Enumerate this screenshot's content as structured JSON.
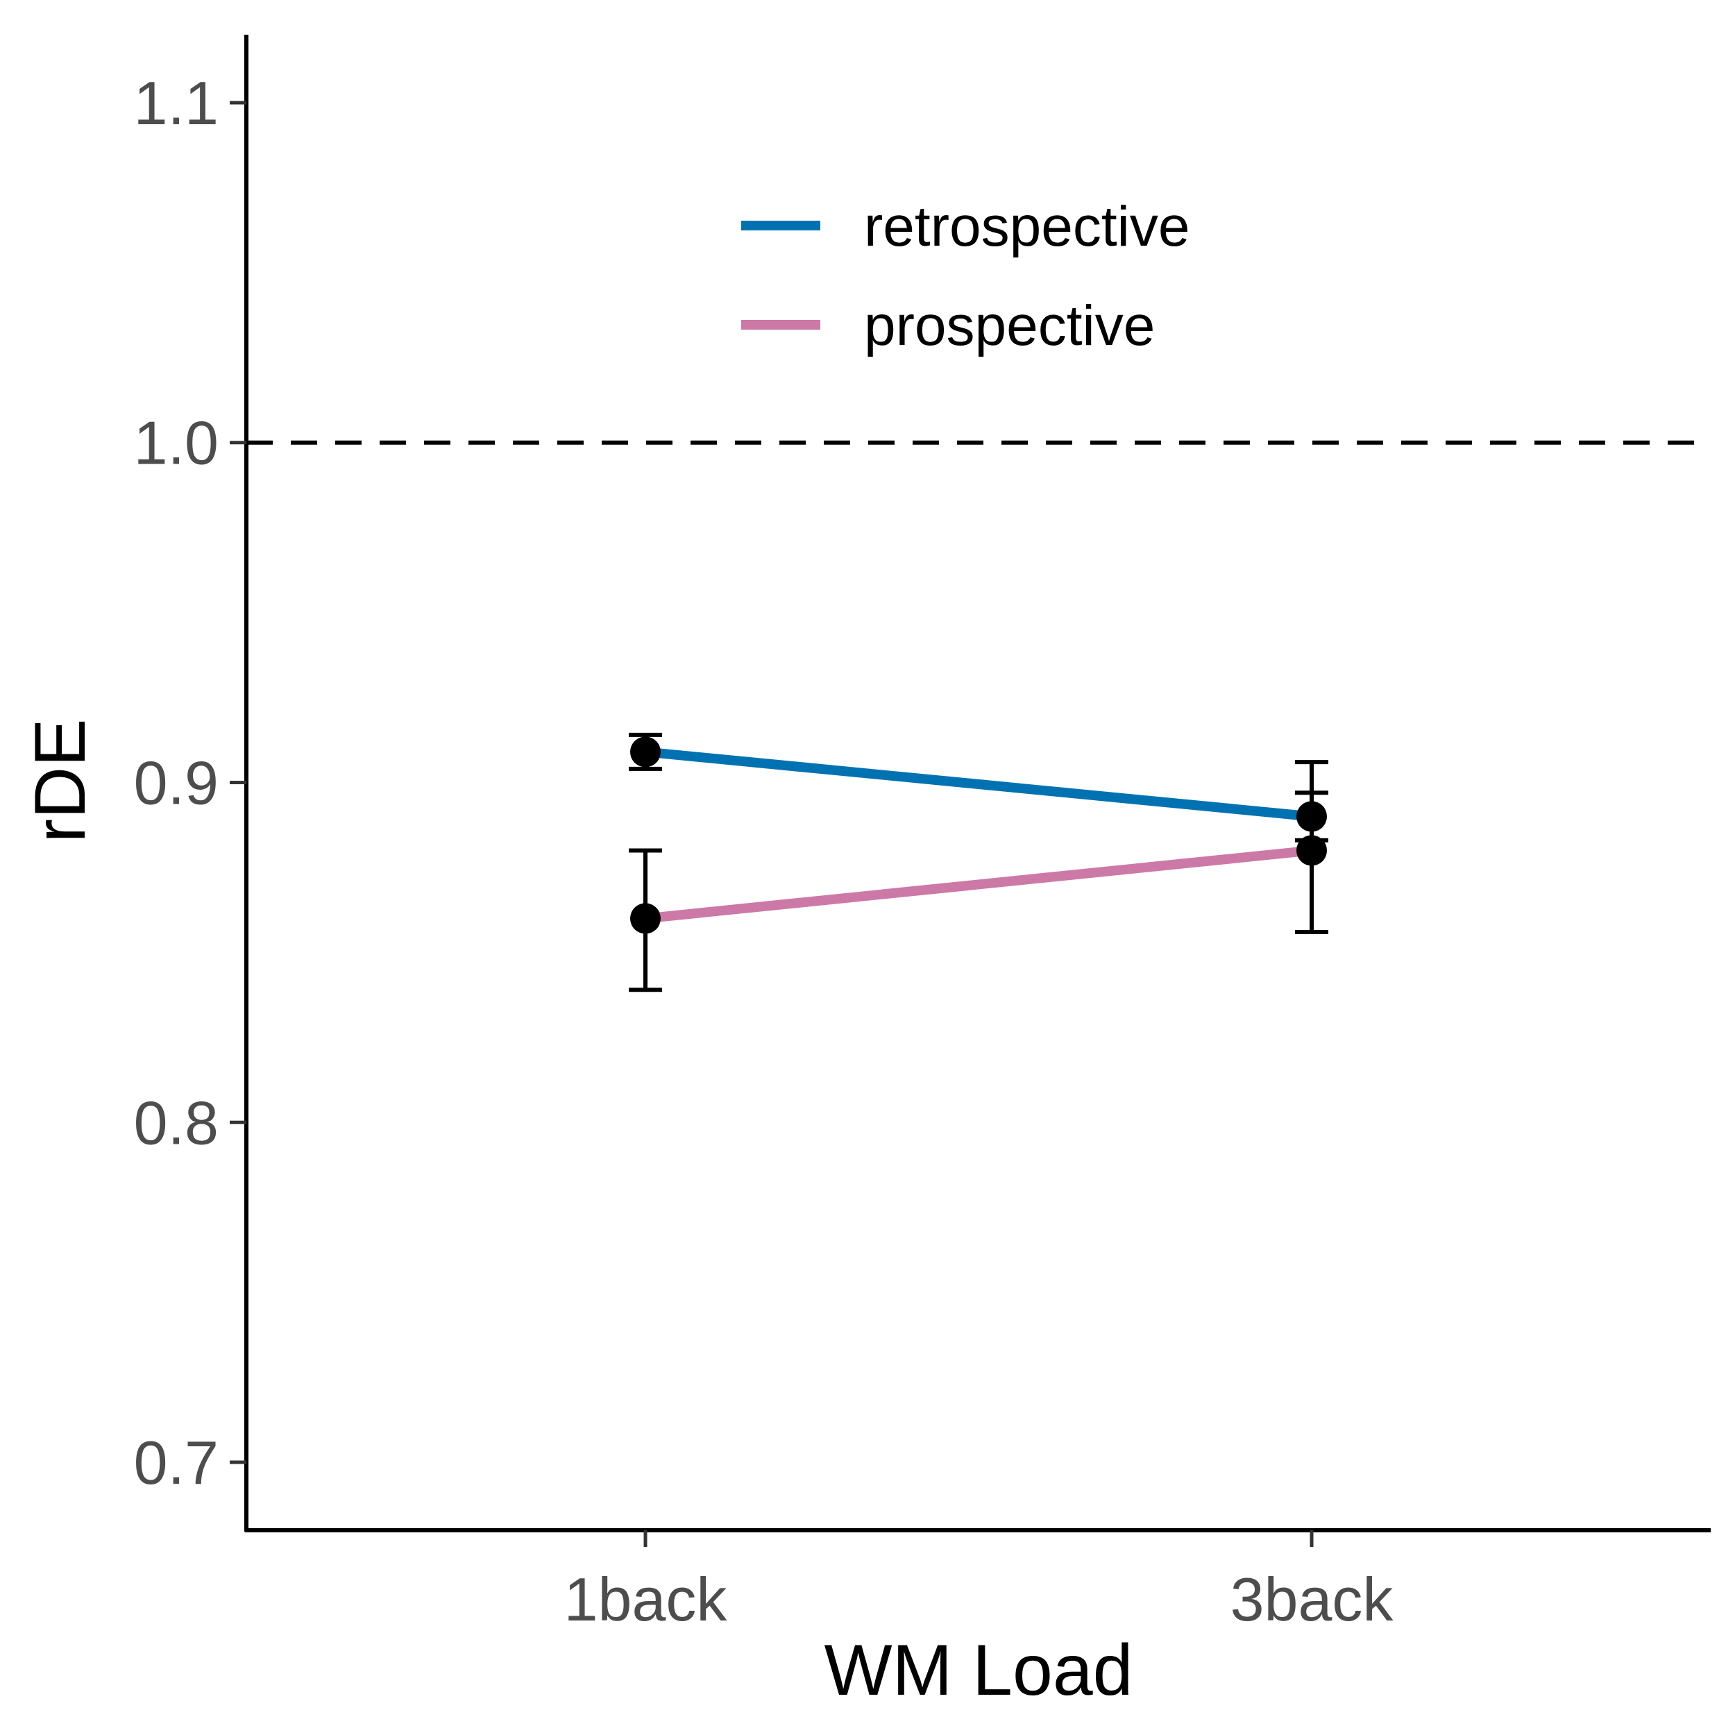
{
  "chart_data": {
    "type": "line",
    "xlabel": "WM Load",
    "ylabel": "rDE",
    "categories": [
      "1back",
      "3back"
    ],
    "ylim": [
      0.68,
      1.12
    ],
    "yticks": [
      0.7,
      0.8,
      0.9,
      1.0,
      1.1
    ],
    "ytick_labels": [
      "0.7",
      "0.8",
      "0.9",
      "1.0",
      "1.1"
    ],
    "reference_line": {
      "y": 1.0,
      "style": "dashed",
      "color": "#000000"
    },
    "grid": false,
    "legend_position": "top-center",
    "series": [
      {
        "name": "retrospective",
        "color": "#0072B2",
        "values": [
          0.909,
          0.89
        ],
        "error_low": [
          0.904,
          0.883
        ],
        "error_high": [
          0.914,
          0.906
        ]
      },
      {
        "name": "prospective",
        "color": "#CC79A7",
        "values": [
          0.86,
          0.88
        ],
        "error_low": [
          0.839,
          0.856
        ],
        "error_high": [
          0.88,
          0.897
        ]
      }
    ]
  }
}
